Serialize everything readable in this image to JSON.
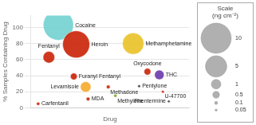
{
  "chart_data": {
    "type": "bubble",
    "xlabel": "Drug",
    "ylabel": "% Samples Containing Drug",
    "labels": [
      "Cocaine",
      "Heroin",
      "Fentanyl",
      "Furanyl Fentanyl",
      "Levamisole",
      "MDA",
      "Methadone",
      "Methylone",
      "Methamphetamine",
      "Pentylone",
      "Oxycodone",
      "THC",
      "U-47700",
      "Phentermine",
      "Carfentanil"
    ],
    "x": [
      2,
      3.5,
      1.2,
      3.3,
      4.3,
      4.5,
      6.2,
      6.8,
      8.3,
      8.8,
      9.5,
      10.5,
      10.8,
      11.3,
      0.3
    ],
    "values": [
      103,
      79,
      63,
      39,
      26,
      11,
      26,
      15,
      80,
      27,
      45,
      41,
      20,
      8,
      5
    ],
    "sizes": [
      10,
      8,
      1.5,
      0.5,
      1.2,
      0.15,
      0.15,
      0.12,
      5,
      0.08,
      0.5,
      1.0,
      0.08,
      0.08,
      0.12
    ],
    "colors": [
      "#6ecfcf",
      "#c81c00",
      "#c81c00",
      "#c81c00",
      "#f5a623",
      "#c81c00",
      "#c81c00",
      "#7aaa20",
      "#e8c020",
      "#333333",
      "#c81c00",
      "#6633aa",
      "#c81c00",
      "#444444",
      "#c81c00"
    ],
    "xlim": [
      -0.3,
      13.0
    ],
    "ylim": [
      0,
      115
    ],
    "yticks": [
      0,
      20,
      40,
      60,
      80,
      100
    ],
    "grid": true,
    "tick_labels": "y",
    "size_scale": {
      "title": "Scale\n(ng cm⁻²)",
      "values": [
        10,
        5,
        1,
        0.5,
        0.1,
        0.05
      ],
      "color": "#b0b0b0"
    }
  }
}
